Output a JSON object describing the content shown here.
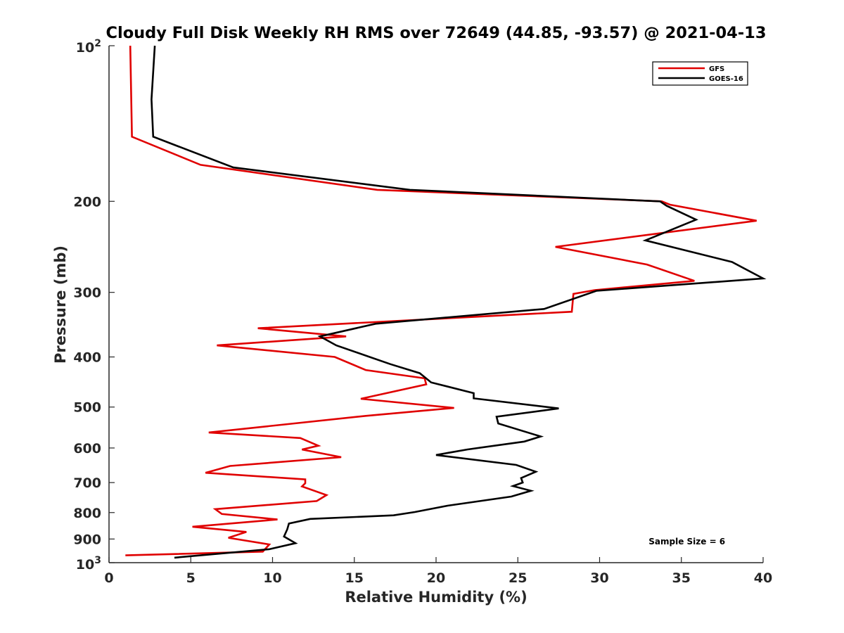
{
  "chart_data": {
    "type": "line",
    "title": "Cloudy Full Disk Weekly RH RMS over 72649 (44.85, -93.57) @ 2021-04-13",
    "xlabel": "Relative Humidity (%)",
    "ylabel": "Pressure (mb)",
    "xlim": [
      0,
      40
    ],
    "ylim": [
      100,
      1000
    ],
    "y_scale": "log",
    "y_reversed": true,
    "x_ticks": [
      "0",
      "5",
      "10",
      "15",
      "20",
      "25",
      "30",
      "35",
      "40"
    ],
    "y_ticks": [
      {
        "value": 100,
        "base": "10",
        "exp": "2"
      },
      {
        "value": 200,
        "label": "200"
      },
      {
        "value": 300,
        "label": "300"
      },
      {
        "value": 400,
        "label": "400"
      },
      {
        "value": 500,
        "label": "500"
      },
      {
        "value": 600,
        "label": "600"
      },
      {
        "value": 700,
        "label": "700"
      },
      {
        "value": 800,
        "label": "800"
      },
      {
        "value": 900,
        "label": "900"
      },
      {
        "value": 1000,
        "base": "10",
        "exp": "3"
      }
    ],
    "legend_position": "top-right",
    "series": [
      {
        "name": "GFS",
        "color": "#e00000",
        "points": [
          [
            1.3,
            100
          ],
          [
            1.4,
            150
          ],
          [
            5.6,
            170
          ],
          [
            16.4,
            190
          ],
          [
            33.8,
            200
          ],
          [
            34.3,
            203
          ],
          [
            39.6,
            218
          ],
          [
            27.3,
            245
          ],
          [
            32.9,
            265
          ],
          [
            35.8,
            285
          ],
          [
            29.7,
            297
          ],
          [
            28.4,
            302
          ],
          [
            28.3,
            327
          ],
          [
            9.1,
            352
          ],
          [
            14.5,
            365
          ],
          [
            6.6,
            380
          ],
          [
            13.8,
            400
          ],
          [
            15.7,
            424
          ],
          [
            19.3,
            440
          ],
          [
            19.4,
            452
          ],
          [
            15.4,
            482
          ],
          [
            21.1,
            502
          ],
          [
            15.7,
            520
          ],
          [
            6.1,
            560
          ],
          [
            11.7,
            574
          ],
          [
            12.8,
            594
          ],
          [
            11.8,
            604
          ],
          [
            14.2,
            625
          ],
          [
            7.4,
            650
          ],
          [
            5.9,
            670
          ],
          [
            12.0,
            690
          ],
          [
            12.0,
            702
          ],
          [
            11.8,
            712
          ],
          [
            13.3,
            740
          ],
          [
            12.7,
            760
          ],
          [
            6.5,
            788
          ],
          [
            6.9,
            805
          ],
          [
            10.3,
            825
          ],
          [
            5.1,
            852
          ],
          [
            8.4,
            872
          ],
          [
            7.3,
            895
          ],
          [
            9.8,
            922
          ],
          [
            9.4,
            952
          ],
          [
            1.0,
            968
          ]
        ]
      },
      {
        "name": "GOES-16",
        "color": "#000000",
        "points": [
          [
            2.8,
            100
          ],
          [
            2.6,
            127
          ],
          [
            2.7,
            150
          ],
          [
            7.6,
            172
          ],
          [
            18.4,
            190
          ],
          [
            33.7,
            200
          ],
          [
            34.1,
            204
          ],
          [
            35.9,
            217
          ],
          [
            32.8,
            238
          ],
          [
            38.1,
            262
          ],
          [
            40.0,
            282
          ],
          [
            29.8,
            298
          ],
          [
            26.6,
            323
          ],
          [
            16.3,
            345
          ],
          [
            12.9,
            365
          ],
          [
            13.9,
            380
          ],
          [
            17.2,
            413
          ],
          [
            19.0,
            430
          ],
          [
            19.7,
            448
          ],
          [
            22.3,
            470
          ],
          [
            22.3,
            481
          ],
          [
            27.5,
            503
          ],
          [
            23.7,
            522
          ],
          [
            23.8,
            538
          ],
          [
            26.4,
            570
          ],
          [
            25.4,
            583
          ],
          [
            21.9,
            604
          ],
          [
            20.0,
            619
          ],
          [
            24.9,
            647
          ],
          [
            26.1,
            667
          ],
          [
            25.2,
            686
          ],
          [
            25.3,
            700
          ],
          [
            24.7,
            711
          ],
          [
            25.8,
            726
          ],
          [
            24.6,
            745
          ],
          [
            20.7,
            776
          ],
          [
            18.7,
            798
          ],
          [
            17.4,
            810
          ],
          [
            12.3,
            823
          ],
          [
            11.0,
            840
          ],
          [
            10.9,
            862
          ],
          [
            10.7,
            890
          ],
          [
            11.4,
            917
          ],
          [
            9.8,
            942
          ],
          [
            4.0,
            978
          ]
        ]
      }
    ],
    "annotations": [
      {
        "text": "Sample Size = 6",
        "x": 33.0,
        "y": 910
      }
    ]
  }
}
